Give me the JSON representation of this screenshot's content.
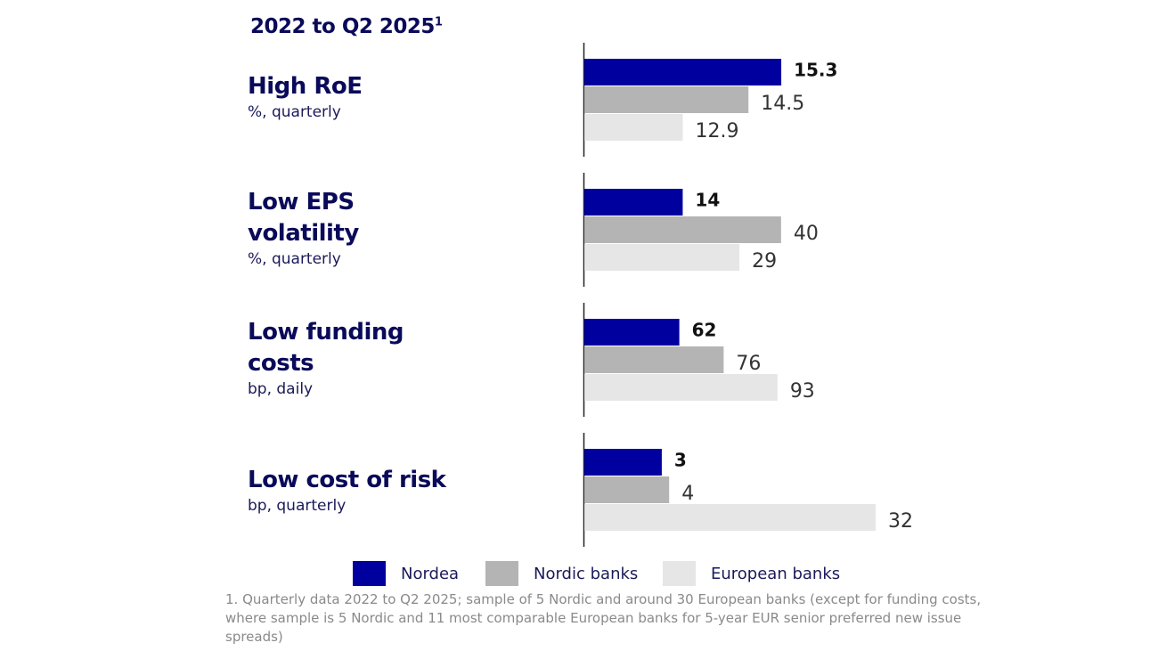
{
  "heading": "2022 to Q2 2025",
  "heading_note": "1",
  "footnote": "1. Quarterly data 2022 to Q2 2025; sample of 5 Nordic and around 30 European banks (except for funding costs, where sample is 5 Nordic and 11 most comparable European banks for 5-year EUR senior preferred new issue spreads)",
  "chart_data": [
    {
      "type": "bar",
      "orientation": "horizontal",
      "title": "High RoE",
      "subtitle": "%, quarterly",
      "xlim": [
        10.5,
        17.6
      ],
      "series": [
        {
          "name": "Nordea",
          "color": "#00009f",
          "values": [
            15.3
          ]
        },
        {
          "name": "Nordic banks",
          "color": "#b4b4b4",
          "values": [
            14.5
          ]
        },
        {
          "name": "European banks",
          "color": "#e6e6e6",
          "values": [
            12.9
          ]
        }
      ]
    },
    {
      "type": "bar",
      "orientation": "horizontal",
      "title": "Low EPS volatility",
      "subtitle": "%, quarterly",
      "xlim": [
        -12,
        65
      ],
      "series": [
        {
          "name": "Nordea",
          "color": "#00009f",
          "values": [
            14
          ]
        },
        {
          "name": "Nordic banks",
          "color": "#b4b4b4",
          "values": [
            40
          ]
        },
        {
          "name": "European banks",
          "color": "#e6e6e6",
          "values": [
            29
          ]
        }
      ]
    },
    {
      "type": "bar",
      "orientation": "horizontal",
      "title": "Low funding costs",
      "subtitle": "bp, daily",
      "xlim": [
        32,
        124
      ],
      "series": [
        {
          "name": "Nordea",
          "color": "#00009f",
          "values": [
            62
          ]
        },
        {
          "name": "Nordic banks",
          "color": "#b4b4b4",
          "values": [
            76
          ]
        },
        {
          "name": "European banks",
          "color": "#e6e6e6",
          "values": [
            93
          ]
        }
      ]
    },
    {
      "type": "bar",
      "orientation": "horizontal",
      "title": "Low cost of risk",
      "subtitle": "bp, quarterly",
      "xlim": [
        -7.5,
        32
      ],
      "series": [
        {
          "name": "Nordea",
          "color": "#00009f",
          "values": [
            3
          ]
        },
        {
          "name": "Nordic banks",
          "color": "#b4b4b4",
          "values": [
            4
          ]
        },
        {
          "name": "European banks",
          "color": "#e6e6e6",
          "values": [
            32
          ]
        }
      ]
    }
  ]
}
